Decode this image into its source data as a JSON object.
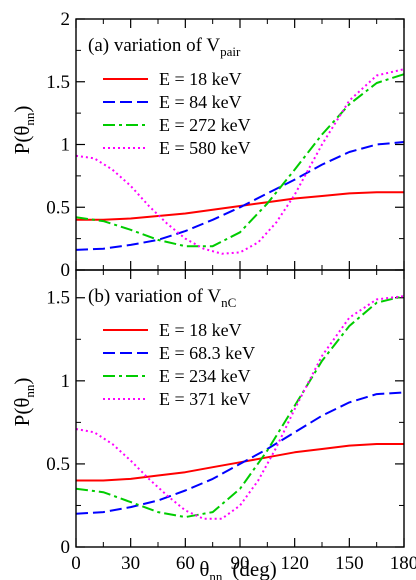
{
  "chart_data": {
    "type": "line",
    "x_label": {
      "main": "θ",
      "sub": "nn",
      "suffix": "(deg)"
    },
    "y_label": {
      "prefix": "P(θ",
      "sub": "nn",
      "suffix": ")"
    },
    "x_ticks": [
      0,
      30,
      60,
      90,
      120,
      150,
      180
    ],
    "panels": [
      {
        "id": "a",
        "title_prefix": "(a) variation of V",
        "title_sub": "pair",
        "xlim": [
          0,
          180
        ],
        "ylim": [
          0,
          2
        ],
        "y_ticks": [
          0,
          0.5,
          1,
          1.5,
          2
        ],
        "y_tick_labels": [
          "0",
          "0.5",
          "1",
          "1.5",
          "2"
        ],
        "series": [
          {
            "name": "E = 18 keV",
            "color": "#ff0000",
            "dash": "solid",
            "x": [
              0,
              15,
              30,
              45,
              60,
              75,
              90,
              105,
              120,
              135,
              150,
              165,
              180
            ],
            "y": [
              0.4,
              0.4,
              0.41,
              0.43,
              0.45,
              0.48,
              0.51,
              0.54,
              0.57,
              0.59,
              0.61,
              0.62,
              0.62
            ]
          },
          {
            "name": "E = 84 keV",
            "color": "#0000ff",
            "dash": "dash",
            "x": [
              0,
              15,
              30,
              45,
              60,
              75,
              90,
              105,
              120,
              135,
              150,
              165,
              180
            ],
            "y": [
              0.16,
              0.17,
              0.2,
              0.24,
              0.31,
              0.4,
              0.5,
              0.61,
              0.72,
              0.84,
              0.94,
              1.0,
              1.02
            ]
          },
          {
            "name": "E = 272 keV",
            "color": "#00cc00",
            "dash": "dashdot",
            "x": [
              0,
              15,
              30,
              45,
              60,
              75,
              90,
              105,
              120,
              135,
              150,
              165,
              180
            ],
            "y": [
              0.42,
              0.39,
              0.32,
              0.24,
              0.19,
              0.19,
              0.3,
              0.53,
              0.8,
              1.08,
              1.32,
              1.49,
              1.56
            ]
          },
          {
            "name": "E = 580 keV",
            "color": "#ff00ff",
            "dash": "dot",
            "x": [
              0,
              10,
              20,
              30,
              40,
              50,
              60,
              70,
              80,
              90,
              100,
              110,
              120,
              135,
              150,
              165,
              180
            ],
            "y": [
              0.91,
              0.89,
              0.8,
              0.67,
              0.51,
              0.37,
              0.25,
              0.17,
              0.13,
              0.14,
              0.22,
              0.38,
              0.6,
              1.0,
              1.35,
              1.55,
              1.6
            ]
          }
        ]
      },
      {
        "id": "b",
        "title_prefix": "(b) variation of V",
        "title_sub": "nC",
        "xlim": [
          0,
          180
        ],
        "ylim": [
          0,
          1.667
        ],
        "y_ticks": [
          0,
          0.5,
          1,
          1.5
        ],
        "y_tick_labels": [
          "0",
          "0.5",
          "1",
          "1.5"
        ],
        "series": [
          {
            "name": "E = 18 keV",
            "color": "#ff0000",
            "dash": "solid",
            "x": [
              0,
              15,
              30,
              45,
              60,
              75,
              90,
              105,
              120,
              135,
              150,
              165,
              180
            ],
            "y": [
              0.4,
              0.4,
              0.41,
              0.43,
              0.45,
              0.48,
              0.51,
              0.54,
              0.57,
              0.59,
              0.61,
              0.62,
              0.62
            ]
          },
          {
            "name": "E = 68.3 keV",
            "color": "#0000ff",
            "dash": "dash",
            "x": [
              0,
              15,
              30,
              45,
              60,
              75,
              90,
              105,
              120,
              135,
              150,
              165,
              180
            ],
            "y": [
              0.2,
              0.21,
              0.24,
              0.28,
              0.34,
              0.41,
              0.5,
              0.59,
              0.69,
              0.79,
              0.87,
              0.92,
              0.93
            ]
          },
          {
            "name": "E = 234 keV",
            "color": "#00cc00",
            "dash": "dashdot",
            "x": [
              0,
              15,
              30,
              45,
              60,
              75,
              90,
              105,
              120,
              135,
              150,
              165,
              180
            ],
            "y": [
              0.35,
              0.33,
              0.27,
              0.21,
              0.18,
              0.21,
              0.35,
              0.58,
              0.85,
              1.12,
              1.33,
              1.47,
              1.51
            ]
          },
          {
            "name": "E = 371 keV",
            "color": "#ff00ff",
            "dash": "dot",
            "x": [
              0,
              10,
              20,
              30,
              40,
              50,
              60,
              70,
              80,
              90,
              100,
              110,
              120,
              135,
              150,
              165,
              180
            ],
            "y": [
              0.71,
              0.69,
              0.62,
              0.52,
              0.41,
              0.31,
              0.22,
              0.17,
              0.17,
              0.25,
              0.4,
              0.6,
              0.83,
              1.15,
              1.38,
              1.49,
              1.51
            ]
          }
        ]
      }
    ]
  }
}
